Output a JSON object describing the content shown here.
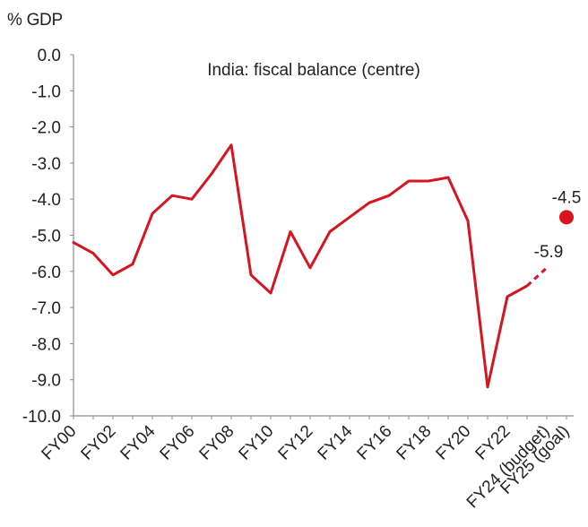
{
  "chart_data": {
    "type": "line",
    "title": "India: fiscal balance (centre)",
    "ylabel": "% GDP",
    "xlabel": "",
    "ylim": [
      -10.0,
      0.0
    ],
    "yticks": [
      "0.0",
      "-1.0",
      "-2.0",
      "-3.0",
      "-4.0",
      "-5.0",
      "-6.0",
      "-7.0",
      "-8.0",
      "-9.0",
      "-10.0"
    ],
    "x": [
      "FY00",
      "FY01",
      "FY02",
      "FY03",
      "FY04",
      "FY05",
      "FY06",
      "FY07",
      "FY08",
      "FY09",
      "FY10",
      "FY11",
      "FY12",
      "FY13",
      "FY14",
      "FY15",
      "FY16",
      "FY17",
      "FY18",
      "FY19",
      "FY20",
      "FY21",
      "FY22",
      "FY23",
      "FY24 (budget)",
      "FY25 (goal)"
    ],
    "xtick_labels": [
      "FY00",
      "FY02",
      "FY04",
      "FY06",
      "FY08",
      "FY10",
      "FY12",
      "FY14",
      "FY16",
      "FY18",
      "FY20",
      "FY22",
      "FY24 (budget)",
      "FY25 (goal)"
    ],
    "series": [
      {
        "name": "",
        "color": "#d7141f",
        "values": [
          -5.2,
          -5.5,
          -6.1,
          -5.8,
          -4.4,
          -3.9,
          -4.0,
          -3.3,
          -2.5,
          -6.1,
          -6.6,
          -4.9,
          -5.9,
          -4.9,
          -4.5,
          -4.1,
          -3.9,
          -3.5,
          -3.5,
          -3.4,
          -4.6,
          -9.2,
          -6.7,
          -6.4,
          -5.9,
          null
        ]
      }
    ],
    "dashed_segment": {
      "from": "FY23",
      "to": "FY24 (budget)"
    },
    "goal_point": {
      "x": "FY25 (goal)",
      "value": -4.5,
      "label": "-4.5"
    },
    "budget_label": {
      "x": "FY24 (budget)",
      "value": -5.9,
      "label": "-5.9"
    },
    "grid": false,
    "legend": "none"
  }
}
